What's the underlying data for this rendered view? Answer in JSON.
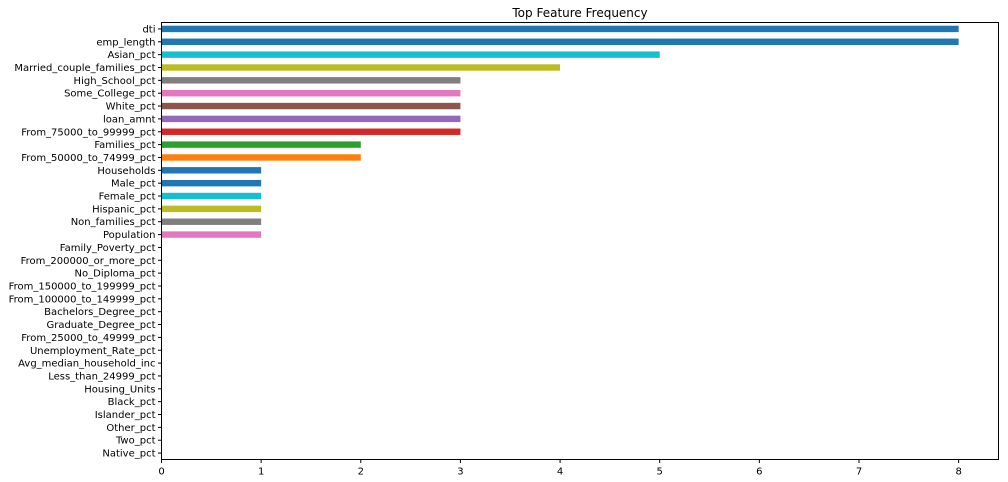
{
  "chart_data": {
    "type": "bar",
    "orientation": "horizontal",
    "title": "Top Feature Frequency",
    "xlabel": "",
    "ylabel": "",
    "xlim": [
      0,
      8.4
    ],
    "xticks": [
      0,
      1,
      2,
      3,
      4,
      5,
      6,
      7,
      8
    ],
    "grid": false,
    "legend": "none",
    "categories": [
      "dti",
      "emp_length",
      "Asian_pct",
      "Married_couple_families_pct",
      "High_School_pct",
      "Some_College_pct",
      "White_pct",
      "loan_amnt",
      "From_75000_to_99999_pct",
      "Families_pct",
      "From_50000_to_74999_pct",
      "Households",
      "Male_pct",
      "Female_pct",
      "Hispanic_pct",
      "Non_families_pct",
      "Population",
      "Family_Poverty_pct",
      "From_200000_or_more_pct",
      "No_Diploma_pct",
      "From_150000_to_199999_pct",
      "From_100000_to_149999_pct",
      "Bachelors_Degree_pct",
      "Graduate_Degree_pct",
      "From_25000_to_49999_pct",
      "Unemployment_Rate_pct",
      "Avg_median_household_inc",
      "Less_than_24999_pct",
      "Housing_Units",
      "Black_pct",
      "Islander_pct",
      "Other_pct",
      "Two_pct",
      "Native_pct"
    ],
    "values": [
      8,
      8,
      5,
      4,
      3,
      3,
      3,
      3,
      3,
      2,
      2,
      1,
      1,
      1,
      1,
      1,
      1,
      0,
      0,
      0,
      0,
      0,
      0,
      0,
      0,
      0,
      0,
      0,
      0,
      0,
      0,
      0,
      0,
      0
    ],
    "colors": [
      "#1f77b4",
      "#1f77b4",
      "#17becf",
      "#bcbd22",
      "#7f7f7f",
      "#e377c2",
      "#8c564b",
      "#9467bd",
      "#d62728",
      "#2ca02c",
      "#ff7f0e",
      "#1f77b4",
      "#1f77b4",
      "#17becf",
      "#bcbd22",
      "#7f7f7f",
      "#e377c2",
      "#8c564b",
      "#9467bd",
      "#d62728",
      "#2ca02c",
      "#ff7f0e",
      "#1f77b4",
      "#1f77b4",
      "#17becf",
      "#bcbd22",
      "#7f7f7f",
      "#e377c2",
      "#8c564b",
      "#9467bd",
      "#d62728",
      "#2ca02c",
      "#ff7f0e",
      "#1f77b4"
    ]
  }
}
